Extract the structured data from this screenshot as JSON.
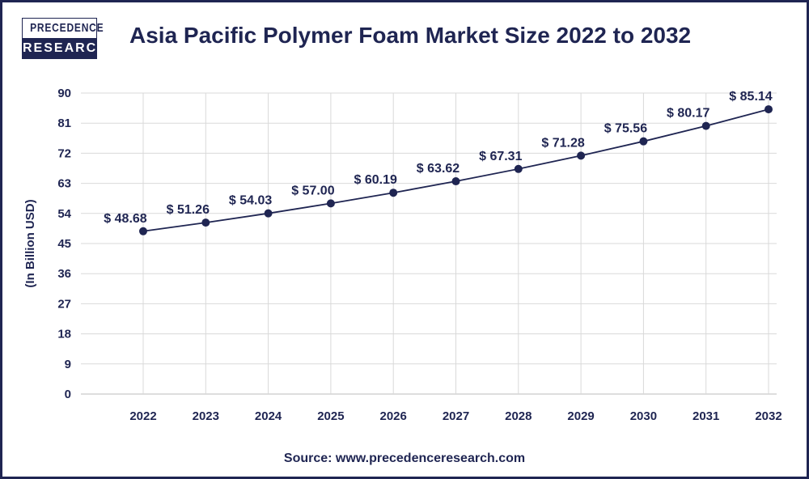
{
  "logo": {
    "line1": "PRECEDENCE",
    "line2": "RESEARCH"
  },
  "source": "Source: www.precedenceresearch.com",
  "colors": {
    "primary": "#1f2552",
    "grid": "#d9d9d9"
  },
  "chart_data": {
    "type": "line",
    "title": "Asia Pacific Polymer Foam Market Size 2022 to 2032",
    "xlabel": "",
    "ylabel": "(In Billion USD)",
    "ylim": [
      0,
      90
    ],
    "yticks": [
      "0",
      "9",
      "18",
      "27",
      "36",
      "45",
      "54",
      "63",
      "72",
      "81",
      "90"
    ],
    "grid": true,
    "categories": [
      "2022",
      "2023",
      "2024",
      "2025",
      "2026",
      "2027",
      "2028",
      "2029",
      "2030",
      "2031",
      "2032"
    ],
    "values": [
      48.68,
      51.26,
      54.03,
      57.0,
      60.19,
      63.62,
      67.31,
      71.28,
      75.56,
      80.17,
      85.14
    ],
    "data_labels": [
      "$ 48.68",
      "$ 51.26",
      "$ 54.03",
      "$ 57.00",
      "$ 60.19",
      "$ 63.62",
      "$ 67.31",
      "$ 71.28",
      "$ 75.56",
      "$ 80.17",
      "$ 85.14"
    ]
  }
}
